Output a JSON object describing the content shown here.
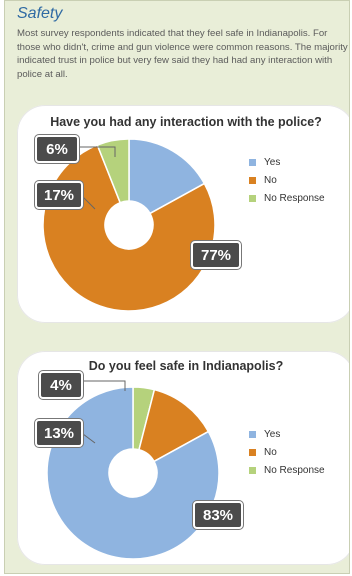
{
  "section_title": "Safety",
  "intro_text": "Most survey respondents indicated that they feel safe in Indianapolis. For those who didn't, crime and gun violence were common reasons. The majority indicated trust in police but very few said they had had any interaction with police at all.",
  "colors": {
    "yes": "#8fb4e0",
    "no": "#d98121",
    "no_response": "#b5d27c"
  },
  "chart_data": [
    {
      "type": "pie",
      "title": "Have you had any interaction with the police?",
      "categories": [
        "Yes",
        "No",
        "No Response"
      ],
      "values": [
        17,
        77,
        6
      ],
      "value_labels": [
        "17%",
        "77%",
        "6%"
      ],
      "legend_position": "right"
    },
    {
      "type": "pie",
      "title": "Do you feel safe in Indianapolis?",
      "categories": [
        "Yes",
        "No",
        "No Response"
      ],
      "values": [
        83,
        13,
        4
      ],
      "value_labels": [
        "83%",
        "13%",
        "4%"
      ],
      "legend_position": "right"
    }
  ]
}
